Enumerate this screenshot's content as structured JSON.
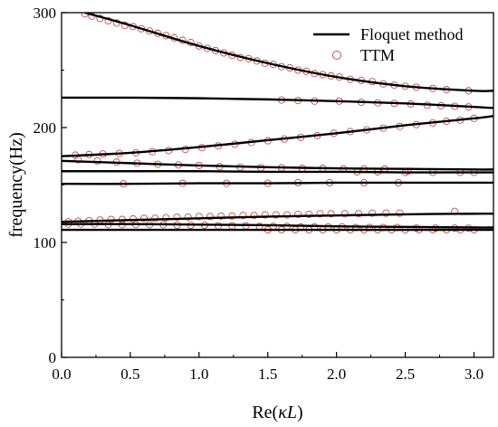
{
  "chart_data": {
    "type": "line",
    "xlabel": "Re(κL)",
    "ylabel": "frequency(Hz)",
    "xlim": [
      0.0,
      3.14159
    ],
    "ylim": [
      0,
      300
    ],
    "xticks": [
      "0.0",
      "0.5",
      "1.0",
      "1.5",
      "2.0",
      "2.5",
      "3.0"
    ],
    "xtick_values": [
      0.0,
      0.5,
      1.0,
      1.5,
      2.0,
      2.5,
      3.0
    ],
    "yticks": [
      "0",
      "100",
      "200",
      "300"
    ],
    "ytick_values": [
      0,
      100,
      200,
      300
    ],
    "grid": false,
    "legend": {
      "position": "top-right",
      "entries": [
        {
          "name": "Floquet method",
          "marker": "line",
          "color": "#000000"
        },
        {
          "name": "TTM",
          "marker": "open-circle",
          "color": "#c0504d"
        }
      ]
    },
    "series": [
      {
        "name": "Floquet method",
        "style": "line",
        "color": "#000000",
        "branches": [
          {
            "x": [
              0.17,
              0.5,
              1.0,
              1.5,
              2.0,
              2.5,
              3.0,
              3.14
            ],
            "y": [
              300,
              289,
              271,
              256,
              244,
              236,
              232,
              232
            ]
          },
          {
            "x": [
              0.0,
              0.5,
              1.0,
              1.5,
              2.0,
              2.5,
              3.0,
              3.14
            ],
            "y": [
              226,
              226,
              225.5,
              224.5,
              223,
              221,
              218,
              217
            ]
          },
          {
            "x": [
              0.0,
              0.5,
              1.0,
              1.5,
              2.0,
              2.5,
              3.0,
              3.14
            ],
            "y": [
              175,
              178,
              183,
              189,
              195,
              202,
              208,
              210
            ]
          },
          {
            "x": [
              0.0,
              0.5,
              1.0,
              1.5,
              2.0,
              2.5,
              3.0,
              3.14
            ],
            "y": [
              171,
              169,
              167,
              165.5,
              164.5,
              164,
              163.5,
              163.5
            ]
          },
          {
            "x": [
              0.0,
              0.5,
              1.0,
              1.5,
              2.0,
              2.5,
              3.0,
              3.14
            ],
            "y": [
              162,
              162,
              162,
              161.5,
              161.5,
              161,
              161,
              161
            ]
          },
          {
            "x": [
              0.0,
              0.5,
              1.0,
              1.5,
              2.0,
              2.5,
              3.0,
              3.14
            ],
            "y": [
              151,
              151,
              151.5,
              151.5,
              152,
              152,
              152,
              152
            ]
          },
          {
            "x": [
              0.0,
              0.5,
              1.0,
              1.5,
              2.0,
              2.5,
              3.0,
              3.14
            ],
            "y": [
              118,
              119.5,
              121,
              122.5,
              123.5,
              124.5,
              125,
              125
            ]
          },
          {
            "x": [
              0.0,
              0.5,
              1.0,
              1.5,
              2.0,
              2.5,
              3.0,
              3.14
            ],
            "y": [
              116,
              116,
              115.5,
              115,
              114,
              113.5,
              113,
              113
            ]
          },
          {
            "x": [
              0.0,
              0.5,
              1.0,
              1.5,
              2.0,
              2.5,
              3.0,
              3.14
            ],
            "y": [
              111,
              111,
              111,
              111,
              111,
              111,
              111,
              111
            ]
          }
        ]
      },
      {
        "name": "TTM",
        "style": "scatter",
        "marker": "open-circle",
        "color": "#c0504d",
        "points": [
          {
            "x": 0.17,
            "y": 299
          },
          {
            "x": 0.22,
            "y": 297
          },
          {
            "x": 0.28,
            "y": 295
          },
          {
            "x": 0.34,
            "y": 293
          },
          {
            "x": 0.4,
            "y": 291
          },
          {
            "x": 0.46,
            "y": 289
          },
          {
            "x": 0.52,
            "y": 288
          },
          {
            "x": 0.58,
            "y": 286
          },
          {
            "x": 0.64,
            "y": 284
          },
          {
            "x": 0.7,
            "y": 282
          },
          {
            "x": 0.76,
            "y": 280
          },
          {
            "x": 0.82,
            "y": 278
          },
          {
            "x": 0.88,
            "y": 276
          },
          {
            "x": 0.94,
            "y": 274
          },
          {
            "x": 1.0,
            "y": 271
          },
          {
            "x": 1.06,
            "y": 269
          },
          {
            "x": 1.12,
            "y": 267
          },
          {
            "x": 1.18,
            "y": 265
          },
          {
            "x": 1.24,
            "y": 263
          },
          {
            "x": 1.3,
            "y": 261
          },
          {
            "x": 1.36,
            "y": 260
          },
          {
            "x": 1.42,
            "y": 258
          },
          {
            "x": 1.48,
            "y": 256
          },
          {
            "x": 1.54,
            "y": 255
          },
          {
            "x": 1.6,
            "y": 253
          },
          {
            "x": 1.66,
            "y": 252
          },
          {
            "x": 1.72,
            "y": 250
          },
          {
            "x": 1.78,
            "y": 249
          },
          {
            "x": 1.84,
            "y": 247
          },
          {
            "x": 1.9,
            "y": 246
          },
          {
            "x": 1.96,
            "y": 245
          },
          {
            "x": 2.02,
            "y": 244
          },
          {
            "x": 2.1,
            "y": 242
          },
          {
            "x": 2.18,
            "y": 241
          },
          {
            "x": 2.26,
            "y": 240
          },
          {
            "x": 2.34,
            "y": 238
          },
          {
            "x": 2.42,
            "y": 237
          },
          {
            "x": 2.5,
            "y": 236
          },
          {
            "x": 2.58,
            "y": 235
          },
          {
            "x": 2.7,
            "y": 234
          },
          {
            "x": 2.8,
            "y": 233
          },
          {
            "x": 2.96,
            "y": 232
          },
          {
            "x": 1.6,
            "y": 224
          },
          {
            "x": 1.72,
            "y": 223.5
          },
          {
            "x": 1.84,
            "y": 223
          },
          {
            "x": 2.02,
            "y": 223
          },
          {
            "x": 2.18,
            "y": 222
          },
          {
            "x": 2.3,
            "y": 221.5
          },
          {
            "x": 2.42,
            "y": 221
          },
          {
            "x": 2.54,
            "y": 220.5
          },
          {
            "x": 2.66,
            "y": 219.5
          },
          {
            "x": 2.76,
            "y": 219
          },
          {
            "x": 2.86,
            "y": 218.5
          },
          {
            "x": 2.96,
            "y": 218
          },
          {
            "x": 0.1,
            "y": 176
          },
          {
            "x": 0.2,
            "y": 176.5
          },
          {
            "x": 0.3,
            "y": 177
          },
          {
            "x": 0.42,
            "y": 177.5
          },
          {
            "x": 0.54,
            "y": 178
          },
          {
            "x": 0.66,
            "y": 179
          },
          {
            "x": 0.78,
            "y": 180
          },
          {
            "x": 0.9,
            "y": 181
          },
          {
            "x": 1.02,
            "y": 182.5
          },
          {
            "x": 1.14,
            "y": 184
          },
          {
            "x": 1.26,
            "y": 185.5
          },
          {
            "x": 1.38,
            "y": 187
          },
          {
            "x": 1.5,
            "y": 188.5
          },
          {
            "x": 1.62,
            "y": 190
          },
          {
            "x": 1.74,
            "y": 191.5
          },
          {
            "x": 1.86,
            "y": 193
          },
          {
            "x": 1.98,
            "y": 195
          },
          {
            "x": 2.1,
            "y": 196.5
          },
          {
            "x": 2.22,
            "y": 198
          },
          {
            "x": 2.34,
            "y": 199.5
          },
          {
            "x": 2.46,
            "y": 201
          },
          {
            "x": 2.58,
            "y": 202.5
          },
          {
            "x": 2.7,
            "y": 204
          },
          {
            "x": 2.8,
            "y": 205.5
          },
          {
            "x": 2.9,
            "y": 206.5
          },
          {
            "x": 3.0,
            "y": 208
          },
          {
            "x": 0.12,
            "y": 172
          },
          {
            "x": 0.26,
            "y": 171
          },
          {
            "x": 0.4,
            "y": 170
          },
          {
            "x": 0.55,
            "y": 169
          },
          {
            "x": 0.7,
            "y": 168
          },
          {
            "x": 0.85,
            "y": 167.5
          },
          {
            "x": 1.0,
            "y": 167
          },
          {
            "x": 1.15,
            "y": 166
          },
          {
            "x": 1.3,
            "y": 165.5
          },
          {
            "x": 1.45,
            "y": 165
          },
          {
            "x": 1.6,
            "y": 165
          },
          {
            "x": 1.75,
            "y": 164.5
          },
          {
            "x": 1.9,
            "y": 164.5
          },
          {
            "x": 2.05,
            "y": 164
          },
          {
            "x": 2.2,
            "y": 164
          },
          {
            "x": 2.35,
            "y": 164
          },
          {
            "x": 2.15,
            "y": 161.5
          },
          {
            "x": 2.3,
            "y": 161.5
          },
          {
            "x": 2.5,
            "y": 161
          },
          {
            "x": 2.52,
            "y": 162
          },
          {
            "x": 2.7,
            "y": 161
          },
          {
            "x": 2.9,
            "y": 161
          },
          {
            "x": 3.0,
            "y": 161
          },
          {
            "x": 0.45,
            "y": 151
          },
          {
            "x": 0.88,
            "y": 151.5
          },
          {
            "x": 1.2,
            "y": 151.5
          },
          {
            "x": 1.5,
            "y": 151.5
          },
          {
            "x": 1.72,
            "y": 152
          },
          {
            "x": 1.95,
            "y": 152
          },
          {
            "x": 2.2,
            "y": 152
          },
          {
            "x": 2.45,
            "y": 152
          },
          {
            "x": 0.05,
            "y": 118
          },
          {
            "x": 0.12,
            "y": 118.5
          },
          {
            "x": 0.2,
            "y": 119
          },
          {
            "x": 0.28,
            "y": 119.5
          },
          {
            "x": 0.36,
            "y": 120
          },
          {
            "x": 0.44,
            "y": 120
          },
          {
            "x": 0.52,
            "y": 120.5
          },
          {
            "x": 0.6,
            "y": 121
          },
          {
            "x": 0.68,
            "y": 121
          },
          {
            "x": 0.76,
            "y": 121.5
          },
          {
            "x": 0.84,
            "y": 122
          },
          {
            "x": 0.92,
            "y": 122
          },
          {
            "x": 1.0,
            "y": 122.5
          },
          {
            "x": 1.08,
            "y": 122.5
          },
          {
            "x": 1.16,
            "y": 123
          },
          {
            "x": 1.24,
            "y": 123
          },
          {
            "x": 1.32,
            "y": 123.5
          },
          {
            "x": 1.4,
            "y": 123.5
          },
          {
            "x": 1.48,
            "y": 124
          },
          {
            "x": 1.56,
            "y": 124
          },
          {
            "x": 1.64,
            "y": 124
          },
          {
            "x": 1.72,
            "y": 124.5
          },
          {
            "x": 1.8,
            "y": 124.5
          },
          {
            "x": 1.88,
            "y": 125
          },
          {
            "x": 1.96,
            "y": 125
          },
          {
            "x": 2.06,
            "y": 125
          },
          {
            "x": 2.16,
            "y": 125
          },
          {
            "x": 2.26,
            "y": 125.5
          },
          {
            "x": 2.36,
            "y": 125.5
          },
          {
            "x": 2.46,
            "y": 125.5
          },
          {
            "x": 2.86,
            "y": 127
          },
          {
            "x": 0.05,
            "y": 116
          },
          {
            "x": 0.14,
            "y": 116
          },
          {
            "x": 0.24,
            "y": 116
          },
          {
            "x": 0.34,
            "y": 115.5
          },
          {
            "x": 0.44,
            "y": 115.5
          },
          {
            "x": 0.54,
            "y": 115.5
          },
          {
            "x": 0.64,
            "y": 115.5
          },
          {
            "x": 0.74,
            "y": 115.5
          },
          {
            "x": 0.84,
            "y": 115
          },
          {
            "x": 0.94,
            "y": 115
          },
          {
            "x": 1.04,
            "y": 115
          },
          {
            "x": 1.14,
            "y": 114.5
          },
          {
            "x": 1.24,
            "y": 114.5
          },
          {
            "x": 1.34,
            "y": 114.5
          },
          {
            "x": 1.44,
            "y": 114
          },
          {
            "x": 1.54,
            "y": 114
          },
          {
            "x": 1.64,
            "y": 114
          },
          {
            "x": 1.74,
            "y": 113.5
          },
          {
            "x": 1.84,
            "y": 113.5
          },
          {
            "x": 1.94,
            "y": 113.5
          },
          {
            "x": 2.04,
            "y": 113.5
          },
          {
            "x": 2.14,
            "y": 113
          },
          {
            "x": 2.24,
            "y": 113
          },
          {
            "x": 2.34,
            "y": 113
          },
          {
            "x": 2.44,
            "y": 113
          },
          {
            "x": 2.58,
            "y": 112.5
          },
          {
            "x": 2.72,
            "y": 112.5
          },
          {
            "x": 2.86,
            "y": 112.5
          },
          {
            "x": 2.96,
            "y": 112.5
          },
          {
            "x": 1.5,
            "y": 111
          },
          {
            "x": 1.6,
            "y": 111
          },
          {
            "x": 1.7,
            "y": 111
          },
          {
            "x": 1.8,
            "y": 111
          },
          {
            "x": 1.9,
            "y": 111
          },
          {
            "x": 2.0,
            "y": 111
          },
          {
            "x": 2.1,
            "y": 111
          },
          {
            "x": 2.2,
            "y": 111
          },
          {
            "x": 2.3,
            "y": 111
          },
          {
            "x": 2.4,
            "y": 111
          },
          {
            "x": 2.5,
            "y": 111
          },
          {
            "x": 2.6,
            "y": 111
          },
          {
            "x": 2.7,
            "y": 111
          },
          {
            "x": 2.8,
            "y": 111
          },
          {
            "x": 2.9,
            "y": 111
          },
          {
            "x": 3.0,
            "y": 111
          }
        ]
      }
    ]
  }
}
